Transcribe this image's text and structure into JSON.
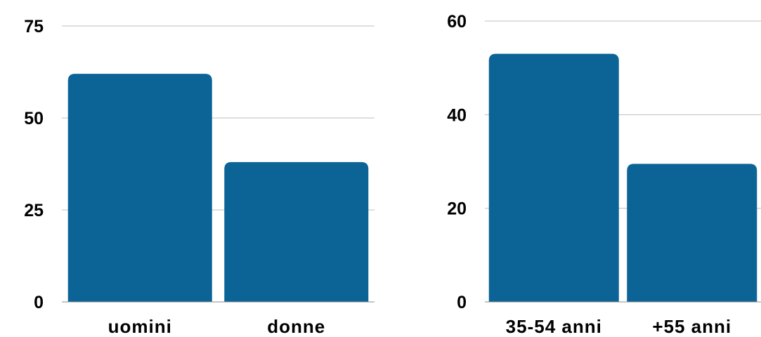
{
  "chart_data": [
    {
      "type": "bar",
      "title": "",
      "xlabel": "",
      "ylabel": "",
      "categories": [
        "uomini",
        "donne"
      ],
      "values": [
        62,
        38
      ],
      "ylim": [
        0,
        75
      ],
      "yticks": [
        "0",
        "25",
        "50",
        "75"
      ],
      "grid": true,
      "bar_color": "#0b6396",
      "grid_color": "#bfbfbf",
      "text_color": "#000000"
    },
    {
      "type": "bar",
      "title": "",
      "xlabel": "",
      "ylabel": "",
      "categories": [
        "35-54 anni",
        "+55 anni"
      ],
      "values": [
        53,
        29.5
      ],
      "ylim": [
        0,
        60
      ],
      "yticks": [
        "0",
        "20",
        "40",
        "60"
      ],
      "grid": true,
      "bar_color": "#0b6396",
      "grid_color": "#bfbfbf",
      "text_color": "#000000"
    }
  ]
}
